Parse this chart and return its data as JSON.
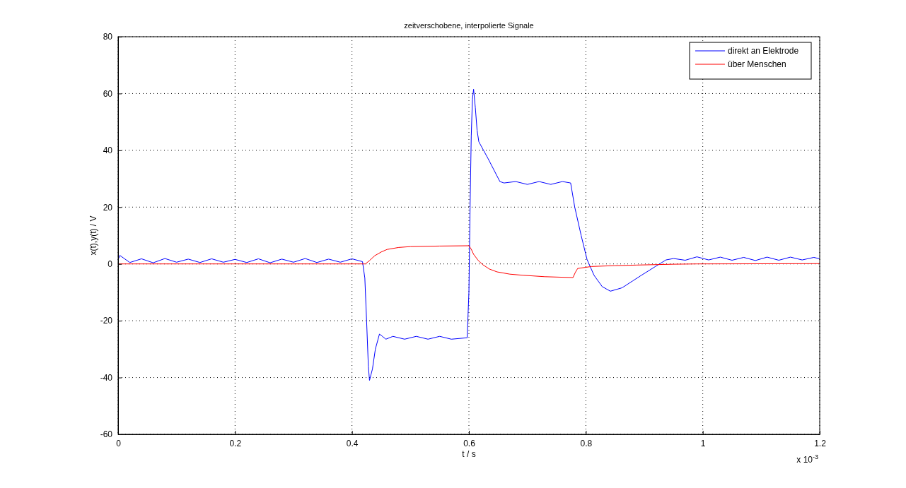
{
  "chart_data": {
    "type": "line",
    "title": "zeitverschobene, interpolierte Signale",
    "xlabel": "t / s",
    "ylabel": "x(t),y(t) / V",
    "annotations": [
      "x 10$^{-3}$"
    ],
    "xlim": [
      0,
      1.2
    ],
    "xticks": [
      0,
      0.2,
      0.4,
      0.6,
      0.8,
      1,
      1.2
    ],
    "ylim": [
      -60,
      80
    ],
    "yticks": [
      -60,
      -40,
      -20,
      0,
      20,
      40,
      60,
      80
    ],
    "grid": true,
    "legend": "top right",
    "line_style": "solid",
    "series": [
      {
        "name": "direkt an Elektrode",
        "color": "#0000ff",
        "x": [
          0,
          0.003,
          0.02,
          0.04,
          0.06,
          0.08,
          0.1,
          0.12,
          0.14,
          0.16,
          0.18,
          0.2,
          0.22,
          0.24,
          0.26,
          0.28,
          0.3,
          0.32,
          0.34,
          0.36,
          0.38,
          0.4,
          0.418,
          0.422,
          0.425,
          0.428,
          0.43,
          0.435,
          0.44,
          0.447,
          0.452,
          0.458,
          0.47,
          0.49,
          0.51,
          0.53,
          0.55,
          0.57,
          0.597,
          0.6,
          0.602,
          0.604,
          0.606,
          0.608,
          0.611,
          0.614,
          0.617,
          0.625,
          0.633,
          0.643,
          0.653,
          0.66,
          0.68,
          0.7,
          0.72,
          0.74,
          0.76,
          0.774,
          0.781,
          0.792,
          0.802,
          0.814,
          0.828,
          0.842,
          0.862,
          0.88,
          0.895,
          0.919,
          0.937,
          0.95,
          0.97,
          0.99,
          1.01,
          1.03,
          1.05,
          1.07,
          1.09,
          1.11,
          1.13,
          1.15,
          1.17,
          1.19,
          1.2
        ],
        "values": [
          1.5,
          3,
          0.5,
          1.8,
          0.4,
          1.9,
          0.6,
          1.7,
          0.5,
          1.8,
          0.6,
          1.6,
          0.5,
          1.8,
          0.4,
          1.7,
          0.6,
          1.9,
          0.5,
          1.7,
          0.6,
          1.8,
          0.8,
          -5,
          -20,
          -36,
          -41,
          -37,
          -30,
          -24.7,
          -25.5,
          -26.5,
          -25.5,
          -26.5,
          -25.5,
          -26.5,
          -25.5,
          -26.5,
          -26,
          -10,
          20,
          45,
          58,
          61.5,
          55,
          47,
          43,
          40,
          37,
          33,
          29,
          28.5,
          29,
          28,
          29,
          28,
          29,
          28.5,
          20,
          10,
          1.6,
          -4,
          -8,
          -9.6,
          -8.4,
          -6,
          -4,
          -0.9,
          1.4,
          1.9,
          1.3,
          2.5,
          1.4,
          2.4,
          1.3,
          2.3,
          1.2,
          2.4,
          1.3,
          2.4,
          1.4,
          2.3,
          1.8
        ]
      },
      {
        "name": "über Menschen",
        "color": "#ff0000",
        "x": [
          0,
          0.42,
          0.423,
          0.43,
          0.439,
          0.45,
          0.46,
          0.48,
          0.5,
          0.55,
          0.6,
          0.604,
          0.608,
          0.616,
          0.624,
          0.635,
          0.648,
          0.67,
          0.693,
          0.73,
          0.778,
          0.782,
          0.786,
          0.81,
          0.85,
          0.887,
          0.95,
          0.99,
          1.2
        ],
        "values": [
          0,
          0,
          0,
          1.2,
          2.9,
          4.2,
          5.1,
          5.8,
          6.1,
          6.3,
          6.4,
          5.2,
          3.4,
          1.2,
          -0.3,
          -1.8,
          -2.8,
          -3.6,
          -4,
          -4.5,
          -4.8,
          -3,
          -1.6,
          -0.9,
          -0.6,
          -0.4,
          -0.1,
          0,
          0.1
        ]
      }
    ]
  }
}
